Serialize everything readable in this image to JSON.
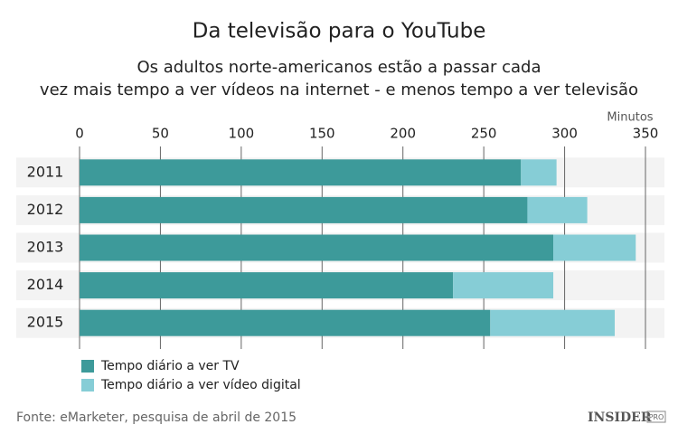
{
  "chart_data": {
    "type": "bar",
    "orientation": "horizontal",
    "stacked": true,
    "title": "Da televisão para o YouTube",
    "subtitle": [
      "Os adultos norte-americanos estão a passar cada",
      "vez mais tempo a ver vídeos na internet - e menos tempo a ver televisão"
    ],
    "x_label": "Minutos",
    "categories": [
      "2011",
      "2012",
      "2013",
      "2014",
      "2015"
    ],
    "series": [
      {
        "name": "Tempo diário a ver TV",
        "color": "#3d9a9a",
        "values": [
          273,
          277,
          293,
          231,
          254
        ]
      },
      {
        "name": "Tempo diário a ver vídeo digital",
        "color": "#86cdd6",
        "values": [
          22,
          37,
          51,
          62,
          77
        ]
      }
    ],
    "xlim": [
      0,
      350
    ],
    "xticks": [
      0,
      50,
      100,
      150,
      200,
      250,
      300,
      350
    ],
    "grid": true,
    "source": "Fonte: eMarketer, pesquisa de abril de 2015",
    "logo": {
      "name": "INSIDER",
      "tag": "PRO"
    }
  }
}
